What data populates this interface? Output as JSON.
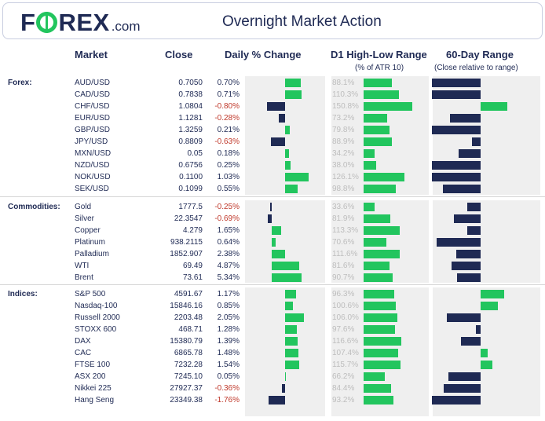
{
  "header": {
    "logo_part1": "F",
    "logo_part2": "REX",
    "logo_suffix": ".com",
    "title": "Overnight Market Action"
  },
  "columns": {
    "market": "Market",
    "close": "Close",
    "daily_change": "Daily % Change",
    "d1_range": "D1 High-Low Range",
    "d1_range_sub": "(% of ATR 10)",
    "day60_range": "60-Day Range",
    "day60_range_sub": "(Close relative to range)"
  },
  "colors": {
    "positive": "#22c55e",
    "negative": "#1f2a54",
    "negative_text": "#c0392b",
    "panel": "#efefef"
  },
  "chart_data": {
    "type": "table",
    "title": "Overnight Market Action",
    "groups": [
      {
        "label": "Forex:",
        "rows": [
          {
            "market": "AUD/USD",
            "close": "0.7050",
            "change": "0.70%",
            "change_value": 0.7,
            "range": "88.1%",
            "range_value": 88.1,
            "range60": 0.55
          },
          {
            "market": "CAD/USD",
            "close": "0.7838",
            "change": "0.71%",
            "change_value": 0.71,
            "range": "110.3%",
            "range_value": 110.3,
            "range60": 0.55
          },
          {
            "market": "CHF/USD",
            "close": "1.0804",
            "change": "-0.80%",
            "change_value": -0.8,
            "range": "150.8%",
            "range_value": 150.8,
            "range60": -0.3
          },
          {
            "market": "EUR/USD",
            "close": "1.1281",
            "change": "-0.28%",
            "change_value": -0.28,
            "range": "73.2%",
            "range_value": 73.2,
            "range60": 0.35
          },
          {
            "market": "GBP/USD",
            "close": "1.3259",
            "change": "0.21%",
            "change_value": 0.21,
            "range": "79.8%",
            "range_value": 79.8,
            "range60": 0.55
          },
          {
            "market": "JPY/USD",
            "close": "0.8809",
            "change": "-0.63%",
            "change_value": -0.63,
            "range": "88.9%",
            "range_value": 88.9,
            "range60": 0.1
          },
          {
            "market": "MXN/USD",
            "close": "0.05",
            "change": "0.18%",
            "change_value": 0.18,
            "range": "34.2%",
            "range_value": 34.2,
            "range60": 0.25
          },
          {
            "market": "NZD/USD",
            "close": "0.6756",
            "change": "0.25%",
            "change_value": 0.25,
            "range": "38.0%",
            "range_value": 38.0,
            "range60": 0.55
          },
          {
            "market": "NOK/USD",
            "close": "0.1100",
            "change": "1.03%",
            "change_value": 1.03,
            "range": "126.1%",
            "range_value": 126.1,
            "range60": 0.55
          },
          {
            "market": "SEK/USD",
            "close": "0.1099",
            "change": "0.55%",
            "change_value": 0.55,
            "range": "98.8%",
            "range_value": 98.8,
            "range60": 0.43
          }
        ]
      },
      {
        "label": "Commodities:",
        "rows": [
          {
            "market": "Gold",
            "close": "1777.5",
            "change": "-0.25%",
            "change_value": -0.25,
            "range": "33.6%",
            "range_value": 33.6,
            "range60": 0.15
          },
          {
            "market": "Silver",
            "close": "22.3547",
            "change": "-0.69%",
            "change_value": -0.69,
            "range": "81.9%",
            "range_value": 81.9,
            "range60": 0.3
          },
          {
            "market": "Copper",
            "close": "4.279",
            "change": "1.65%",
            "change_value": 1.65,
            "range": "113.3%",
            "range_value": 113.3,
            "range60": 0.15
          },
          {
            "market": "Platinum",
            "close": "938.2115",
            "change": "0.64%",
            "change_value": 0.64,
            "range": "70.6%",
            "range_value": 70.6,
            "range60": 0.5
          },
          {
            "market": "Palladium",
            "close": "1852.907",
            "change": "2.38%",
            "change_value": 2.38,
            "range": "111.6%",
            "range_value": 111.6,
            "range60": 0.28
          },
          {
            "market": "WTI",
            "close": "69.49",
            "change": "4.87%",
            "change_value": 4.87,
            "range": "81.6%",
            "range_value": 81.6,
            "range60": 0.33
          },
          {
            "market": "Brent",
            "close": "73.61",
            "change": "5.34%",
            "change_value": 5.34,
            "range": "90.7%",
            "range_value": 90.7,
            "range60": 0.27
          }
        ]
      },
      {
        "label": "Indices:",
        "rows": [
          {
            "market": "S&P 500",
            "close": "4591.67",
            "change": "1.17%",
            "change_value": 1.17,
            "range": "96.3%",
            "range_value": 96.3,
            "range60": -0.27
          },
          {
            "market": "Nasdaq-100",
            "close": "15846.16",
            "change": "0.85%",
            "change_value": 0.85,
            "range": "100.6%",
            "range_value": 100.6,
            "range60": -0.2
          },
          {
            "market": "Russell 2000",
            "close": "2203.48",
            "change": "2.05%",
            "change_value": 2.05,
            "range": "106.0%",
            "range_value": 106.0,
            "range60": 0.38
          },
          {
            "market": "STOXX 600",
            "close": "468.71",
            "change": "1.28%",
            "change_value": 1.28,
            "range": "97.6%",
            "range_value": 97.6,
            "range60": 0.05
          },
          {
            "market": "DAX",
            "close": "15380.79",
            "change": "1.39%",
            "change_value": 1.39,
            "range": "116.6%",
            "range_value": 116.6,
            "range60": 0.22
          },
          {
            "market": "CAC",
            "close": "6865.78",
            "change": "1.48%",
            "change_value": 1.48,
            "range": "107.4%",
            "range_value": 107.4,
            "range60": -0.08
          },
          {
            "market": "FTSE 100",
            "close": "7232.28",
            "change": "1.54%",
            "change_value": 1.54,
            "range": "115.7%",
            "range_value": 115.7,
            "range60": -0.13
          },
          {
            "market": "ASX 200",
            "close": "7245.10",
            "change": "0.05%",
            "change_value": 0.05,
            "range": "66.2%",
            "range_value": 66.2,
            "range60": 0.37
          },
          {
            "market": "Nikkei 225",
            "close": "27927.37",
            "change": "-0.36%",
            "change_value": -0.36,
            "range": "84.4%",
            "range_value": 84.4,
            "range60": 0.42
          },
          {
            "market": "Hang Seng",
            "close": "23349.38",
            "change": "-1.76%",
            "change_value": -1.76,
            "range": "93.2%",
            "range_value": 93.2,
            "range60": 0.55
          }
        ]
      }
    ]
  }
}
